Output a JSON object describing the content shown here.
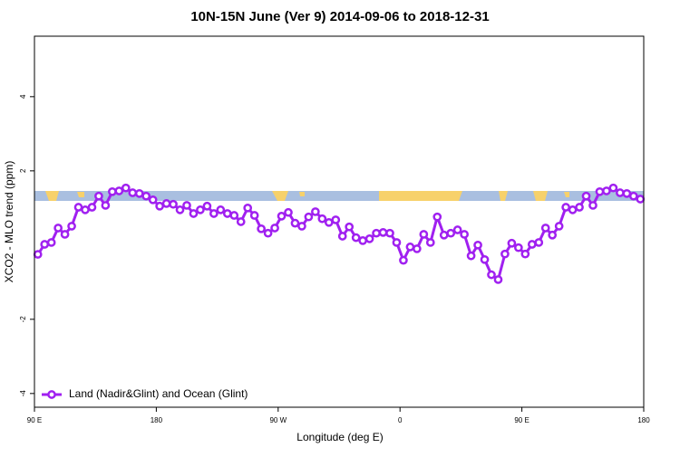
{
  "chart_data": {
    "type": "line",
    "title": "10N-15N June (Ver 9)   2014-09-06 to 2018-12-31",
    "xlabel": "Longitude (deg E)",
    "ylabel": "XCO2 - MLO trend (ppm)",
    "xlim": [
      90,
      540
    ],
    "xticks": [
      {
        "value": 90,
        "label": "90 E"
      },
      {
        "value": 180,
        "label": "180"
      },
      {
        "value": 270,
        "label": "90 W"
      },
      {
        "value": 360,
        "label": "0"
      },
      {
        "value": 450,
        "label": "90 E"
      },
      {
        "value": 540,
        "label": "180"
      }
    ],
    "ylim": [
      -4.37,
      5.63
    ],
    "yticks": [
      -4,
      -2,
      2,
      4
    ],
    "legend": "bottom-left",
    "series": [
      {
        "name": "Land (Nadir&Glint) and Ocean (Glint)",
        "color": "#a020f0",
        "x": [
          92.5,
          97.5,
          102.5,
          107.5,
          112.5,
          117.5,
          122.5,
          127.5,
          132.5,
          137.5,
          142.5,
          147.5,
          152.5,
          157.5,
          162.5,
          167.5,
          172.5,
          177.5,
          182.5,
          187.5,
          192.5,
          197.5,
          202.5,
          207.5,
          212.5,
          217.5,
          222.5,
          227.5,
          232.5,
          237.5,
          242.5,
          247.5,
          252.5,
          257.5,
          262.5,
          267.5,
          272.5,
          277.5,
          282.5,
          287.5,
          292.5,
          297.5,
          302.5,
          307.5,
          312.5,
          317.5,
          322.5,
          327.5,
          332.5,
          337.5,
          342.5,
          347.5,
          352.5,
          357.5,
          362.5,
          367.5,
          372.5,
          377.5,
          382.5,
          387.5,
          392.5,
          397.5,
          402.5,
          407.5,
          412.5,
          417.5,
          422.5,
          427.5,
          432.5,
          437.5,
          442.5,
          447.5,
          452.5,
          457.5,
          462.5,
          467.5,
          472.5,
          477.5,
          482.5,
          487.5,
          492.5,
          497.5,
          502.5,
          507.5,
          512.5,
          517.5,
          522.5,
          527.5,
          532.5,
          537.5
        ],
        "values": [
          -0.25,
          0.02,
          0.07,
          0.46,
          0.29,
          0.51,
          1.02,
          0.95,
          1.02,
          1.32,
          1.07,
          1.44,
          1.46,
          1.54,
          1.41,
          1.39,
          1.32,
          1.22,
          1.05,
          1.12,
          1.1,
          0.95,
          1.07,
          0.85,
          0.95,
          1.05,
          0.85,
          0.95,
          0.85,
          0.8,
          0.63,
          1.0,
          0.8,
          0.44,
          0.32,
          0.46,
          0.78,
          0.88,
          0.59,
          0.51,
          0.76,
          0.9,
          0.71,
          0.61,
          0.68,
          0.24,
          0.49,
          0.2,
          0.12,
          0.17,
          0.32,
          0.34,
          0.32,
          0.07,
          -0.41,
          -0.05,
          -0.1,
          0.29,
          0.07,
          0.76,
          0.27,
          0.32,
          0.41,
          0.29,
          -0.29,
          0.0,
          -0.39,
          -0.8,
          -0.93,
          -0.24,
          0.05,
          -0.07,
          -0.24,
          0.02,
          0.07,
          0.46,
          0.27,
          0.51,
          1.02,
          0.95,
          1.02,
          1.32,
          1.07,
          1.44,
          1.46,
          1.54,
          1.41,
          1.39,
          1.32,
          1.24
        ]
      }
    ]
  }
}
